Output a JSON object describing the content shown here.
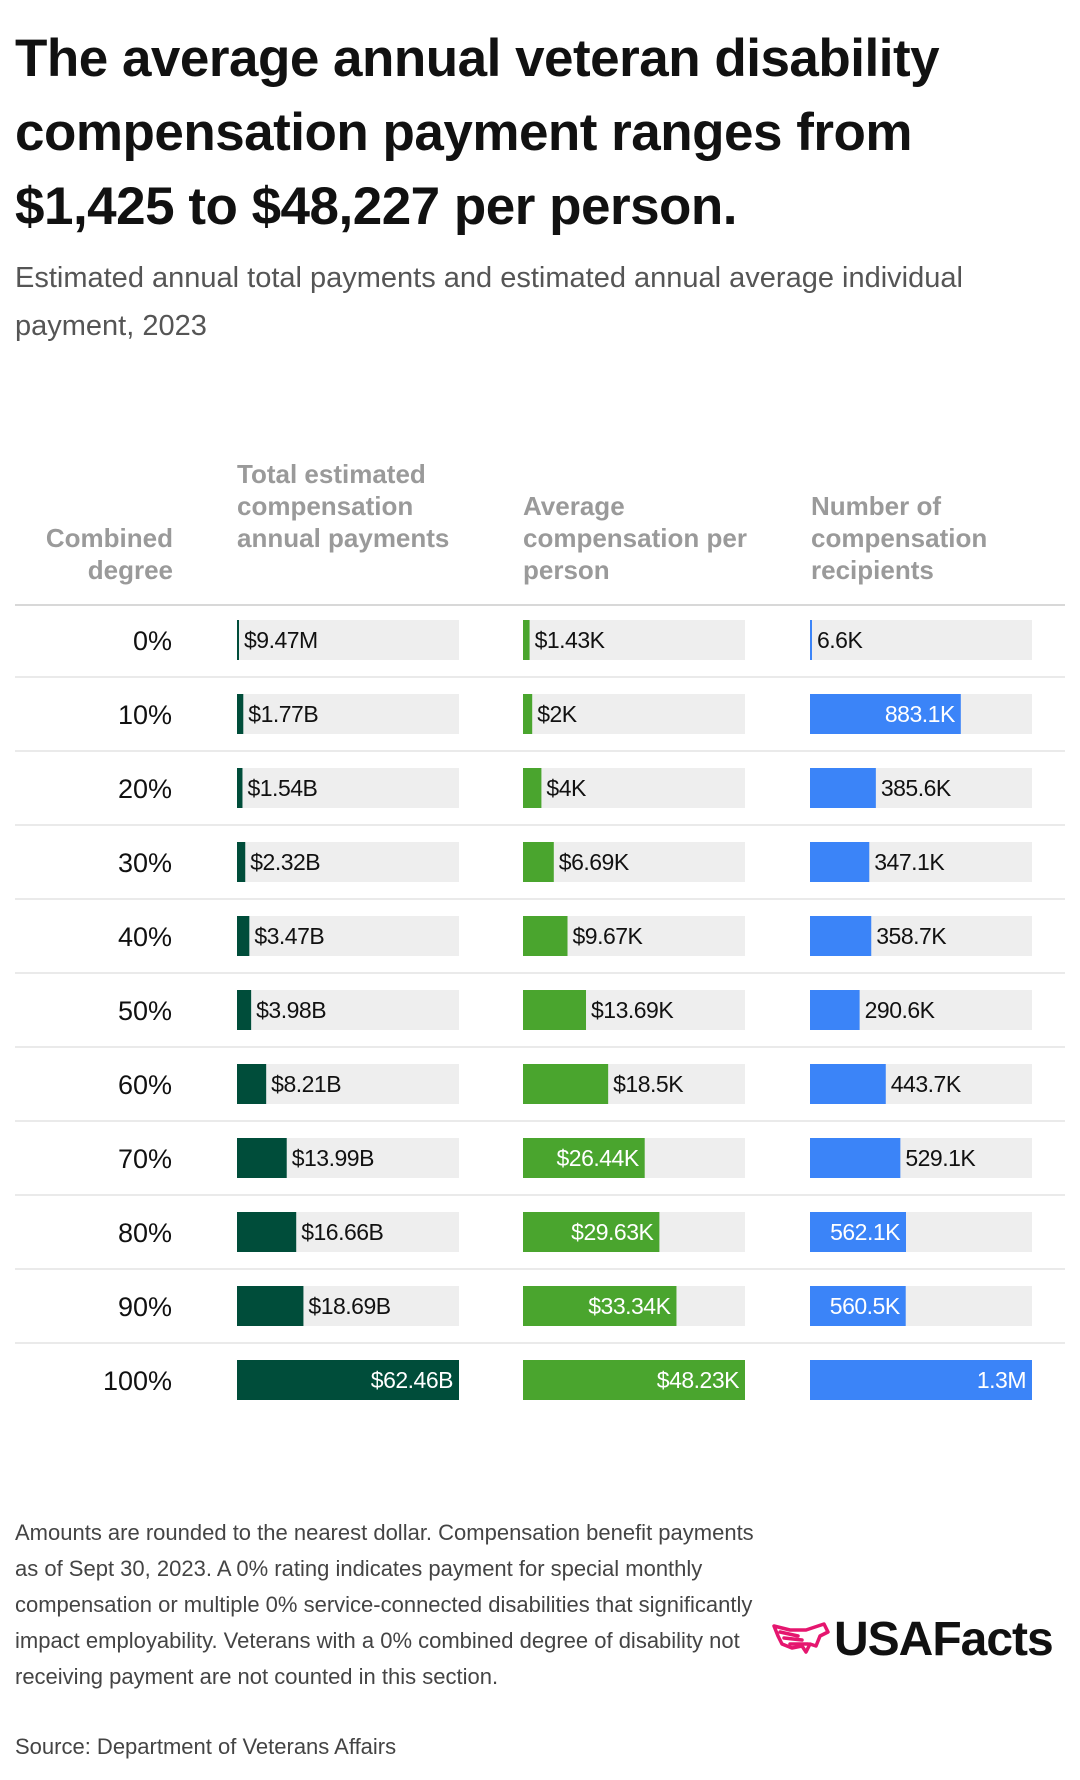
{
  "title": "The average annual veteran disability compensation payment ranges from $1,425 to $48,227 per person.",
  "subtitle": "Estimated annual total payments and estimated annual average individual payment, 2023",
  "footnote": "Amounts are rounded to the nearest dollar. Compensation benefit payments as of Sept 30, 2023. A 0% rating indicates payment for special monthly compensation or multiple 0% service-connected disabilities that significantly impact employability. Veterans with a 0% combined degree of disability not receiving payment are not counted in this section.",
  "source": "Source: Department of Veterans Affairs",
  "logo_text": "USAFacts",
  "colors": {
    "total": "#004d3a",
    "average": "#4aa52e",
    "recipients": "#3b84f8",
    "track": "#eeeeee",
    "rule": "#e3e3e3"
  },
  "chart_data": {
    "type": "bar",
    "orientation": "horizontal",
    "row_header": "Combined degree",
    "categories": [
      "0%",
      "10%",
      "20%",
      "30%",
      "40%",
      "50%",
      "60%",
      "70%",
      "80%",
      "90%",
      "100%"
    ],
    "series": [
      {
        "name": "Total estimated compensation annual payments",
        "values": [
          9470000,
          1770000000,
          1540000000,
          2320000000,
          3470000000,
          3980000000,
          8210000000,
          13990000000,
          16660000000,
          18690000000,
          62460000000
        ],
        "labels": [
          "$9.47M",
          "$1.77B",
          "$1.54B",
          "$2.32B",
          "$3.47B",
          "$3.98B",
          "$8.21B",
          "$13.99B",
          "$16.66B",
          "$18.69B",
          "$62.46B"
        ],
        "max": 62460000000
      },
      {
        "name": "Average compensation per person",
        "values": [
          1430,
          2000,
          4000,
          6690,
          9670,
          13690,
          18500,
          26440,
          29630,
          33340,
          48230
        ],
        "labels": [
          "$1.43K",
          "$2K",
          "$4K",
          "$6.69K",
          "$9.67K",
          "$13.69K",
          "$18.5K",
          "$26.44K",
          "$29.63K",
          "$33.34K",
          "$48.23K"
        ],
        "max": 48230
      },
      {
        "name": "Number of compensation recipients",
        "values": [
          6600,
          883100,
          385600,
          347100,
          358700,
          290600,
          443700,
          529100,
          562100,
          560500,
          1300000
        ],
        "labels": [
          "6.6K",
          "883.1K",
          "385.6K",
          "347.1K",
          "358.7K",
          "290.6K",
          "443.7K",
          "529.1K",
          "562.1K",
          "560.5K",
          "1.3M"
        ],
        "max": 1300000
      }
    ]
  }
}
